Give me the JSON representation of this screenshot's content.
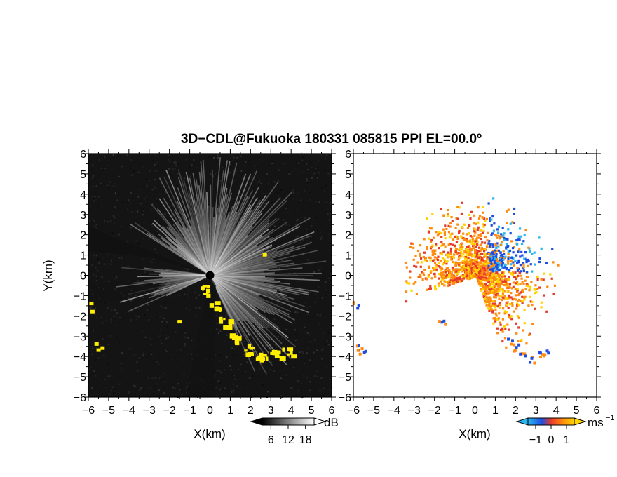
{
  "title": "3D−CDL@Fukuoka 180331 085815 PPI EL=00.0º",
  "chart_data": [
    {
      "type": "heatmap",
      "panel": "left",
      "xlabel": "X(km)",
      "ylabel": "Y(km)",
      "xlim": [
        -6,
        6
      ],
      "ylim": [
        -6,
        6
      ],
      "x_ticks": [
        "−6",
        "−5",
        "−4",
        "−3",
        "−2",
        "−1",
        "0",
        "1",
        "2",
        "3",
        "4",
        "5",
        "6"
      ],
      "y_ticks": [
        "6",
        "5",
        "4",
        "3",
        "2",
        "1",
        "0",
        "−1",
        "−2",
        "−3",
        "−4",
        "−5",
        "−6"
      ],
      "colorbar": {
        "unit": "dB",
        "ticks": [
          "6",
          "12",
          "18"
        ],
        "range": [
          3,
          21
        ]
      },
      "colors": {
        "background": "#141414",
        "echo_high": "#ffffff",
        "clutter": "#ffee00",
        "center": "#000000"
      }
    },
    {
      "type": "heatmap",
      "panel": "right",
      "xlabel": "X(km)",
      "ylabel": "",
      "xlim": [
        -6,
        6
      ],
      "ylim": [
        -6,
        6
      ],
      "x_ticks": [
        "−6",
        "−5",
        "−4",
        "−3",
        "−2",
        "−1",
        "0",
        "1",
        "2",
        "3",
        "4",
        "5",
        "6"
      ],
      "y_ticks": [
        "6",
        "5",
        "4",
        "3",
        "2",
        "1",
        "0",
        "−1",
        "−2",
        "−3",
        "−4",
        "−5",
        "−6"
      ],
      "colorbar": {
        "unit": "ms",
        "unit_exponent": "−1",
        "ticks": [
          "−1",
          "0",
          "1"
        ],
        "range": [
          -1.5,
          1.5
        ]
      },
      "colors": {
        "negative": "#1e4ee0",
        "negative_light": "#2ab7f0",
        "zero": "#e83a2a",
        "positive": "#ff8c10",
        "positive_light": "#ffd400"
      }
    }
  ]
}
